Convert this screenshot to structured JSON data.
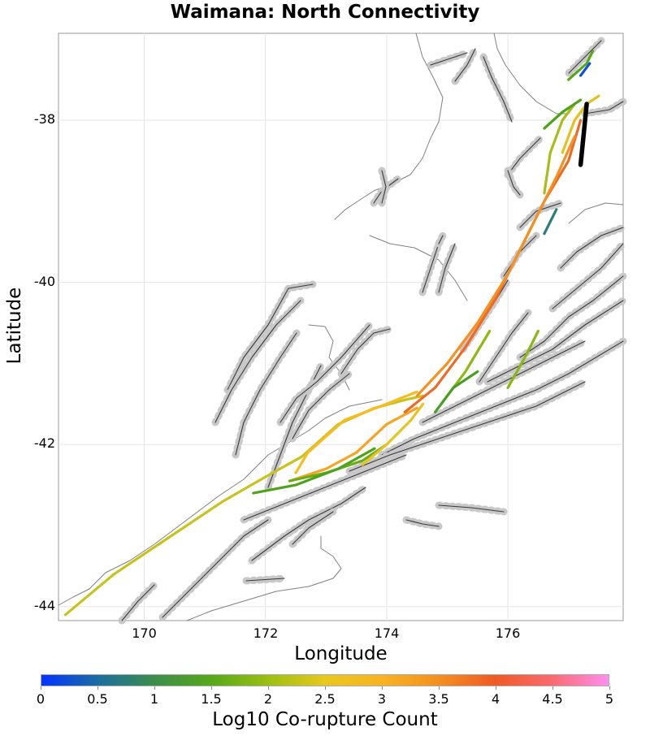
{
  "chart_data": {
    "type": "map",
    "title": "Waimana: North Connectivity",
    "xlabel": "Longitude",
    "ylabel": "Latitude",
    "xlim": [
      168.6,
      177.9
    ],
    "ylim": [
      -44.17,
      -36.9
    ],
    "xticks": [
      "170",
      "172",
      "174",
      "176"
    ],
    "yticks": [
      "-38",
      "-40",
      "-42",
      "-44"
    ],
    "grid": true,
    "colorbar": {
      "label": "Log10 Co-rupture Count",
      "range": [
        0,
        5
      ],
      "ticks": [
        "0",
        "0.5",
        "1",
        "1.5",
        "2",
        "2.5",
        "3",
        "3.5",
        "4",
        "4.5",
        "5"
      ],
      "colors": [
        "#0433ff",
        "#1b6ea0",
        "#3c8e4a",
        "#56a81a",
        "#9bbf14",
        "#e8c81e",
        "#f8b324",
        "#f39020",
        "#ee5a25",
        "#fa6a6e",
        "#ff8ef0"
      ],
      "position": "bottom"
    },
    "highlight_source": {
      "name": "Waimana",
      "color": "#000000",
      "lon": [
        177.3,
        177.2
      ],
      "lat": [
        -37.8,
        -38.55
      ]
    },
    "connected_fault_traces": [
      {
        "value": 2.7,
        "lon": [
          168.7,
          169.5,
          170.5,
          171.3,
          172.0,
          172.6,
          173.2,
          173.8,
          174.3,
          174.6
        ],
        "lat": [
          -44.1,
          -43.6,
          -43.1,
          -42.7,
          -42.4,
          -42.15,
          -41.75,
          -41.55,
          -41.45,
          -41.4
        ],
        "color": "#c8c21e"
      },
      {
        "value": 2.6,
        "lon": [
          172.5,
          172.7,
          173.3,
          174.0,
          174.5
        ],
        "lat": [
          -42.35,
          -42.1,
          -41.7,
          -41.5,
          -41.35
        ],
        "color": "#f6bc22"
      },
      {
        "value": 3.1,
        "lon": [
          172.4,
          173.0,
          173.5,
          174.0,
          174.5
        ],
        "lat": [
          -42.45,
          -42.3,
          -42.1,
          -41.75,
          -41.55
        ],
        "color": "#f6a423"
      },
      {
        "value": 1.6,
        "lon": [
          172.4,
          173.0,
          173.6,
          174.0
        ],
        "lat": [
          -42.45,
          -42.35,
          -42.2,
          -42.0
        ],
        "color": "#6aad17"
      },
      {
        "value": 1.5,
        "lon": [
          171.8,
          172.5,
          173.2,
          173.8
        ],
        "lat": [
          -42.6,
          -42.5,
          -42.3,
          -42.05
        ],
        "color": "#4fa31c"
      },
      {
        "value": 2.5,
        "lon": [
          173.6,
          174.0,
          174.4,
          174.6
        ],
        "lat": [
          -42.25,
          -42.0,
          -41.7,
          -41.5
        ],
        "color": "#e6c41e"
      },
      {
        "value": 3.7,
        "lon": [
          174.3,
          174.8,
          175.3,
          175.8,
          176.2,
          176.6,
          177.0,
          177.2
        ],
        "lat": [
          -41.6,
          -41.3,
          -40.8,
          -40.2,
          -39.6,
          -39.0,
          -38.5,
          -38.0
        ],
        "color": "#ef6a24"
      },
      {
        "value": 3.3,
        "lon": [
          174.5,
          175.0,
          175.5,
          176.0,
          176.4,
          176.8,
          177.1
        ],
        "lat": [
          -41.4,
          -41.0,
          -40.5,
          -39.9,
          -39.3,
          -38.7,
          -38.2
        ],
        "color": "#f49122"
      },
      {
        "value": 2.4,
        "lon": [
          176.9,
          177.1,
          177.3,
          177.5
        ],
        "lat": [
          -38.4,
          -38.0,
          -37.8,
          -37.7
        ],
        "color": "#e0c31e"
      },
      {
        "value": 2.0,
        "lon": [
          176.6,
          176.7,
          176.9,
          177.1
        ],
        "lat": [
          -38.9,
          -38.4,
          -38.0,
          -37.8
        ],
        "color": "#a8bd16"
      },
      {
        "value": 1.4,
        "lon": [
          176.6,
          176.9,
          177.2
        ],
        "lat": [
          -38.1,
          -37.9,
          -37.75
        ],
        "color": "#4fa31c"
      },
      {
        "value": 0.2,
        "lon": [
          177.2,
          177.35
        ],
        "lat": [
          -37.45,
          -37.3
        ],
        "color": "#0d4fe0"
      },
      {
        "value": 1.5,
        "lon": [
          177.0,
          177.3,
          177.4
        ],
        "lat": [
          -37.5,
          -37.3,
          -37.15
        ],
        "color": "#56a81a"
      },
      {
        "value": 1.7,
        "lon": [
          176.0,
          176.3,
          176.5
        ],
        "lat": [
          -41.3,
          -40.9,
          -40.6
        ],
        "color": "#8bb714"
      },
      {
        "value": 1.8,
        "lon": [
          174.9,
          175.3,
          175.7
        ],
        "lat": [
          -41.5,
          -41.1,
          -40.6
        ],
        "color": "#8fb815"
      },
      {
        "value": 1.2,
        "lon": [
          174.8,
          175.1,
          175.5
        ],
        "lat": [
          -41.6,
          -41.3,
          -41.1
        ],
        "color": "#459f22"
      },
      {
        "value": 0.8,
        "lon": [
          176.6,
          176.8
        ],
        "lat": [
          -39.4,
          -39.1
        ],
        "color": "#2a7d7b"
      }
    ]
  }
}
